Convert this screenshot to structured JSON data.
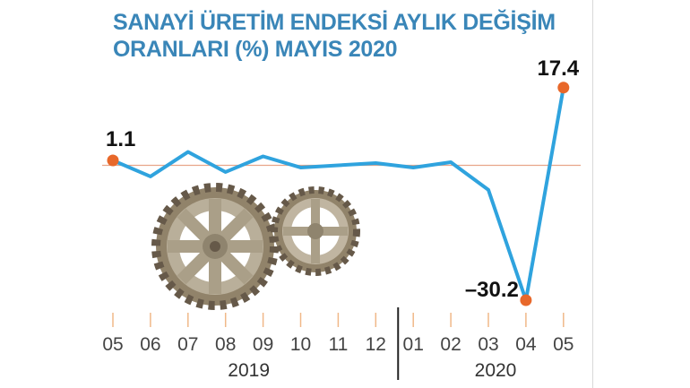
{
  "chart_data": {
    "type": "line",
    "title_lines": [
      "SANAYİ ÜRETİM ENDEKSİ AYLIK DEĞİŞİM",
      "ORANLARI (%) MAYIS 2020"
    ],
    "categories": [
      "05",
      "06",
      "07",
      "08",
      "09",
      "10",
      "11",
      "12",
      "01",
      "02",
      "03",
      "04",
      "05"
    ],
    "years": [
      {
        "label": "2019",
        "from": 0,
        "to": 7
      },
      {
        "label": "2020",
        "from": 8,
        "to": 12
      }
    ],
    "values": [
      1.1,
      -2.5,
      3.0,
      -1.5,
      2.0,
      -0.5,
      0.0,
      0.5,
      -0.5,
      0.7,
      -5.5,
      -30.2,
      17.4
    ],
    "labeled_points": [
      {
        "index": 0,
        "text": "1.1"
      },
      {
        "index": 11,
        "text": "-30.2"
      },
      {
        "index": 12,
        "text": "17.4"
      }
    ],
    "reference_line": 0,
    "ylim": [
      -32,
      20
    ],
    "colors": {
      "line": "#2fa3de",
      "marker": "#e8682a",
      "reference": "#e8a58a",
      "title": "#3a86b8",
      "tick": "#f0b888"
    },
    "illustration": "gears"
  }
}
